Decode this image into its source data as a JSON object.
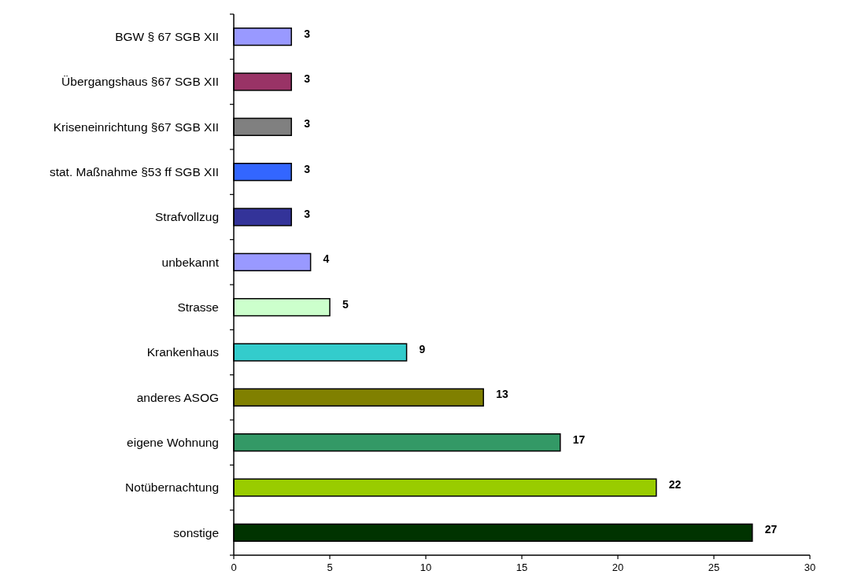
{
  "chart_data": {
    "type": "bar",
    "orientation": "horizontal",
    "categories": [
      "BGW § 67 SGB XII",
      "Übergangshaus §67 SGB XII",
      "Kriseneinrichtung §67 SGB XII",
      "stat. Maßnahme §53 ff SGB XII",
      "Strafvollzug",
      "unbekannt",
      "Strasse",
      "Krankenhaus",
      "anderes ASOG",
      "eigene Wohnung",
      "Notübernachtung",
      "sonstige"
    ],
    "values": [
      3,
      3,
      3,
      3,
      3,
      4,
      5,
      9,
      13,
      17,
      22,
      27
    ],
    "colors": [
      "#9999ff",
      "#993366",
      "#808080",
      "#3366ff",
      "#333399",
      "#9999ff",
      "#ccffcc",
      "#33cccc",
      "#808000",
      "#339966",
      "#99cc00",
      "#003300"
    ],
    "xlim": [
      0,
      30
    ],
    "xticks": [
      0,
      5,
      10,
      15,
      20,
      25,
      30
    ],
    "data_labels": true
  }
}
